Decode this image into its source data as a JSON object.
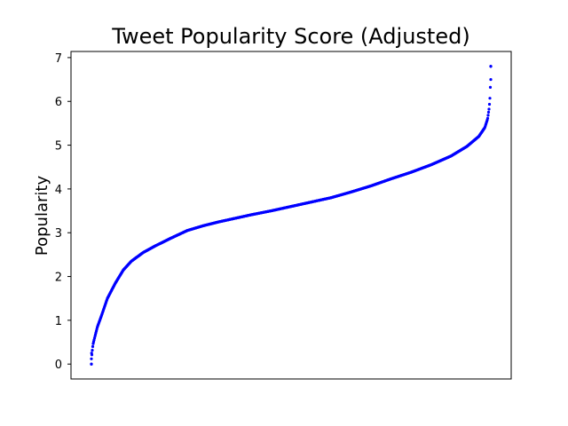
{
  "chart_data": {
    "type": "scatter",
    "title": "Tweet Popularity Score (Adjusted)",
    "xlabel": "",
    "ylabel": "Popularity",
    "xticks_visible": false,
    "ylim": [
      -0.34,
      7.14
    ],
    "yticks": [
      0,
      1,
      2,
      3,
      4,
      5,
      6,
      7
    ],
    "grid": false,
    "marker_color": "#0000ff",
    "series": [
      {
        "description_points": "sorted popularity scores vs rank (fraction of rank range 0..1)",
        "points": [
          [
            0.0,
            0.0
          ],
          [
            0.0005,
            0.1
          ],
          [
            0.001,
            0.2
          ],
          [
            0.002,
            0.3
          ],
          [
            0.004,
            0.45
          ],
          [
            0.008,
            0.6
          ],
          [
            0.015,
            0.85
          ],
          [
            0.025,
            1.1
          ],
          [
            0.04,
            1.5
          ],
          [
            0.06,
            1.85
          ],
          [
            0.08,
            2.15
          ],
          [
            0.1,
            2.35
          ],
          [
            0.13,
            2.55
          ],
          [
            0.16,
            2.7
          ],
          [
            0.2,
            2.88
          ],
          [
            0.24,
            3.05
          ],
          [
            0.28,
            3.16
          ],
          [
            0.32,
            3.25
          ],
          [
            0.36,
            3.33
          ],
          [
            0.4,
            3.41
          ],
          [
            0.45,
            3.5
          ],
          [
            0.5,
            3.6
          ],
          [
            0.55,
            3.7
          ],
          [
            0.6,
            3.8
          ],
          [
            0.65,
            3.93
          ],
          [
            0.7,
            4.07
          ],
          [
            0.75,
            4.23
          ],
          [
            0.8,
            4.38
          ],
          [
            0.85,
            4.55
          ],
          [
            0.9,
            4.75
          ],
          [
            0.94,
            4.97
          ],
          [
            0.97,
            5.2
          ],
          [
            0.985,
            5.4
          ],
          [
            0.992,
            5.6
          ],
          [
            0.996,
            5.85
          ],
          [
            0.998,
            6.1
          ],
          [
            0.999,
            6.35
          ],
          [
            0.9995,
            6.5
          ],
          [
            1.0,
            6.8
          ]
        ]
      }
    ]
  }
}
